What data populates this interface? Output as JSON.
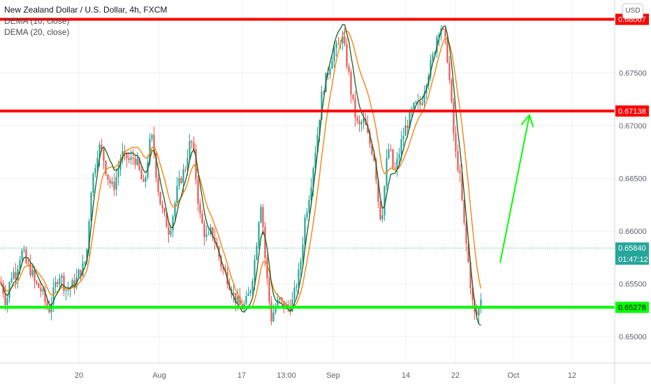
{
  "header": {
    "symbol_title": "New Zealand Dollar / U.S. Dollar, 4h, FXCM",
    "indicators": [
      "DEMA (10, close)",
      "DEMA (20, close)"
    ],
    "currency_button": "USD"
  },
  "chart_data": {
    "type": "candlestick",
    "title": "New Zealand Dollar / U.S. Dollar, 4h, FXCM",
    "ylim": [
      0.6475,
      0.6819
    ],
    "y_ticks": [
      "0.67500",
      "0.67000",
      "0.66500",
      "0.66000",
      "0.65500",
      "0.65000"
    ],
    "x_ticks": [
      "20",
      "Aug",
      "17",
      "13:00",
      "Sep",
      "14",
      "22",
      "Oct",
      "12"
    ],
    "price_path": [
      [
        0,
        0.6552
      ],
      [
        3,
        0.6548
      ],
      [
        6,
        0.654
      ],
      [
        9,
        0.653
      ],
      [
        12,
        0.6545
      ],
      [
        15,
        0.6555
      ],
      [
        18,
        0.6562
      ],
      [
        22,
        0.6558
      ],
      [
        26,
        0.657
      ],
      [
        30,
        0.658
      ],
      [
        34,
        0.6578
      ],
      [
        38,
        0.6568
      ],
      [
        42,
        0.6565
      ],
      [
        46,
        0.656
      ],
      [
        50,
        0.655
      ],
      [
        54,
        0.6548
      ],
      [
        58,
        0.6545
      ],
      [
        62,
        0.6538
      ],
      [
        66,
        0.653
      ],
      [
        70,
        0.6525
      ],
      [
        74,
        0.6535
      ],
      [
        78,
        0.6545
      ],
      [
        82,
        0.6555
      ],
      [
        86,
        0.656
      ],
      [
        90,
        0.6552
      ],
      [
        94,
        0.6545
      ],
      [
        98,
        0.6545
      ],
      [
        102,
        0.6548
      ],
      [
        106,
        0.655
      ],
      [
        110,
        0.6555
      ],
      [
        114,
        0.6562
      ],
      [
        118,
        0.6565
      ],
      [
        122,
        0.6572
      ],
      [
        126,
        0.659
      ],
      [
        128,
        0.662
      ],
      [
        131,
        0.6645
      ],
      [
        134,
        0.6655
      ],
      [
        138,
        0.667
      ],
      [
        141,
        0.668
      ],
      [
        144,
        0.6678
      ],
      [
        148,
        0.667
      ],
      [
        151,
        0.666
      ],
      [
        154,
        0.6652
      ],
      [
        158,
        0.6645
      ],
      [
        162,
        0.664
      ],
      [
        166,
        0.665
      ],
      [
        170,
        0.666
      ],
      [
        174,
        0.6675
      ],
      [
        178,
        0.6668
      ],
      [
        182,
        0.667
      ],
      [
        186,
        0.6665
      ],
      [
        190,
        0.667
      ],
      [
        194,
        0.6668
      ],
      [
        198,
        0.666
      ],
      [
        202,
        0.665
      ],
      [
        206,
        0.664
      ],
      [
        210,
        0.666
      ],
      [
        214,
        0.6682
      ],
      [
        218,
        0.6688
      ],
      [
        221,
        0.6672
      ],
      [
        224,
        0.6652
      ],
      [
        227,
        0.6638
      ],
      [
        230,
        0.6625
      ],
      [
        234,
        0.6615
      ],
      [
        238,
        0.6608
      ],
      [
        242,
        0.66
      ],
      [
        246,
        0.661
      ],
      [
        250,
        0.6625
      ],
      [
        254,
        0.664
      ],
      [
        258,
        0.6648
      ],
      [
        262,
        0.6655
      ],
      [
        266,
        0.6662
      ],
      [
        270,
        0.668
      ],
      [
        274,
        0.6685
      ],
      [
        278,
        0.667
      ],
      [
        282,
        0.664
      ],
      [
        286,
        0.6615
      ],
      [
        290,
        0.6605
      ],
      [
        294,
        0.6595
      ],
      [
        298,
        0.6592
      ],
      [
        302,
        0.66
      ],
      [
        306,
        0.6595
      ],
      [
        310,
        0.6585
      ],
      [
        314,
        0.6575
      ],
      [
        318,
        0.6565
      ],
      [
        322,
        0.656
      ],
      [
        326,
        0.6555
      ],
      [
        330,
        0.6548
      ],
      [
        334,
        0.654
      ],
      [
        338,
        0.6535
      ],
      [
        342,
        0.653
      ],
      [
        346,
        0.6528
      ],
      [
        350,
        0.653
      ],
      [
        354,
        0.6535
      ],
      [
        358,
        0.6545
      ],
      [
        362,
        0.656
      ],
      [
        366,
        0.658
      ],
      [
        370,
        0.661
      ],
      [
        374,
        0.663
      ],
      [
        377,
        0.66
      ],
      [
        380,
        0.657
      ],
      [
        383,
        0.655
      ],
      [
        386,
        0.653
      ],
      [
        389,
        0.6515
      ],
      [
        392,
        0.6525
      ],
      [
        396,
        0.653
      ],
      [
        400,
        0.6535
      ],
      [
        404,
        0.653
      ],
      [
        408,
        0.6528
      ],
      [
        412,
        0.6528
      ],
      [
        416,
        0.653
      ],
      [
        420,
        0.6535
      ],
      [
        424,
        0.655
      ],
      [
        428,
        0.656
      ],
      [
        432,
        0.658
      ],
      [
        436,
        0.661
      ],
      [
        440,
        0.6625
      ],
      [
        444,
        0.664
      ],
      [
        448,
        0.666
      ],
      [
        452,
        0.668
      ],
      [
        456,
        0.67
      ],
      [
        459,
        0.672
      ],
      [
        462,
        0.6735
      ],
      [
        465,
        0.674
      ],
      [
        468,
        0.6748
      ],
      [
        471,
        0.6755
      ],
      [
        474,
        0.6762
      ],
      [
        477,
        0.677
      ],
      [
        480,
        0.6775
      ],
      [
        483,
        0.677
      ],
      [
        486,
        0.678
      ],
      [
        489,
        0.6785
      ],
      [
        492,
        0.6778
      ],
      [
        495,
        0.6765
      ],
      [
        498,
        0.6755
      ],
      [
        501,
        0.674
      ],
      [
        504,
        0.6725
      ],
      [
        507,
        0.6715
      ],
      [
        510,
        0.6705
      ],
      [
        513,
        0.6698
      ],
      [
        516,
        0.67
      ],
      [
        519,
        0.6705
      ],
      [
        522,
        0.6702
      ],
      [
        525,
        0.6695
      ],
      [
        528,
        0.6685
      ],
      [
        531,
        0.668
      ],
      [
        534,
        0.6675
      ],
      [
        537,
        0.6665
      ],
      [
        540,
        0.664
      ],
      [
        543,
        0.662
      ],
      [
        546,
        0.661
      ],
      [
        549,
        0.663
      ],
      [
        552,
        0.6655
      ],
      [
        555,
        0.6675
      ],
      [
        558,
        0.668
      ],
      [
        561,
        0.6665
      ],
      [
        564,
        0.6655
      ],
      [
        567,
        0.666
      ],
      [
        570,
        0.667
      ],
      [
        573,
        0.668
      ],
      [
        576,
        0.6688
      ],
      [
        579,
        0.6695
      ],
      [
        582,
        0.67
      ],
      [
        585,
        0.6705
      ],
      [
        588,
        0.671
      ],
      [
        591,
        0.6715
      ],
      [
        594,
        0.6718
      ],
      [
        597,
        0.672
      ],
      [
        600,
        0.6718
      ],
      [
        603,
        0.6722
      ],
      [
        606,
        0.673
      ],
      [
        609,
        0.674
      ],
      [
        612,
        0.6748
      ],
      [
        615,
        0.6755
      ],
      [
        618,
        0.676
      ],
      [
        621,
        0.6768
      ],
      [
        624,
        0.678
      ],
      [
        627,
        0.679
      ],
      [
        630,
        0.6795
      ],
      [
        633,
        0.6792
      ],
      [
        636,
        0.6782
      ],
      [
        639,
        0.6775
      ],
      [
        642,
        0.6755
      ],
      [
        645,
        0.673
      ],
      [
        648,
        0.6705
      ],
      [
        651,
        0.668
      ],
      [
        654,
        0.6665
      ],
      [
        657,
        0.666
      ],
      [
        660,
        0.664
      ],
      [
        663,
        0.6615
      ],
      [
        666,
        0.6595
      ],
      [
        669,
        0.658
      ],
      [
        672,
        0.656
      ],
      [
        675,
        0.654
      ],
      [
        678,
        0.6525
      ],
      [
        681,
        0.6518
      ],
      [
        684,
        0.6522
      ],
      [
        687,
        0.653
      ],
      [
        690,
        0.6545
      ],
      [
        692,
        0.6575
      ]
    ],
    "horizontal_levels": [
      {
        "price": 0.68007,
        "label": "0.68007",
        "color": "#ff0000"
      },
      {
        "price": 0.67138,
        "label": "0.67138",
        "color": "#ff0000"
      },
      {
        "price": 0.65278,
        "label": "0.65278",
        "color": "#00ff00"
      }
    ],
    "last_price": {
      "price": 0.6584,
      "label": "0.65840",
      "countdown": "01:47:12",
      "color": "#26a69a"
    },
    "projection_arrow": {
      "from": [
        716,
        0.657
      ],
      "to": [
        758,
        0.671
      ],
      "color": "#00ff00"
    },
    "colors": {
      "up": "#26a69a",
      "down": "#ef5350",
      "dema10": "#1b5e20",
      "dema20": "#f57c00",
      "grid": "#eef0f3"
    }
  }
}
